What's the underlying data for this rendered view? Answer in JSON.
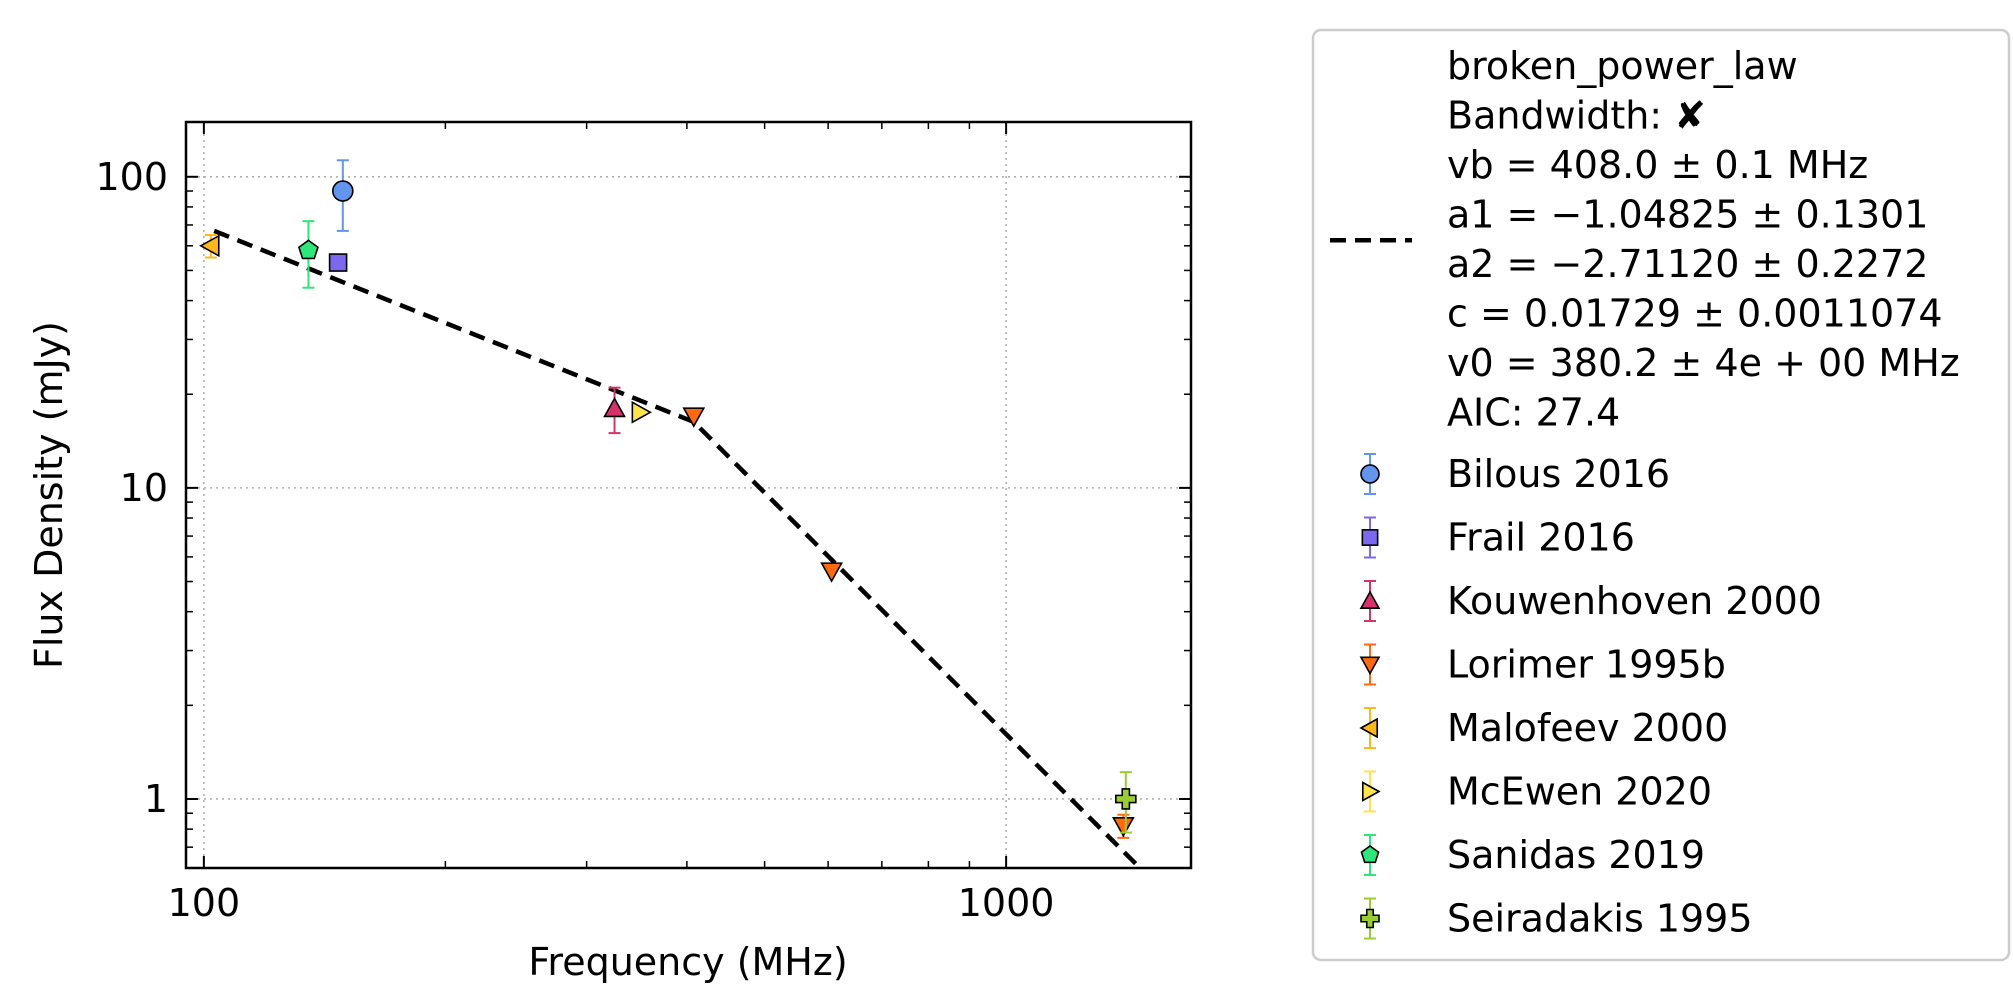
{
  "chart_data": {
    "type": "scatter",
    "title": "",
    "xlabel": "Frequency (MHz)",
    "ylabel": "Flux Density (mJy)",
    "xscale": "log",
    "yscale": "log",
    "xlim": [
      95,
      1700
    ],
    "ylim": [
      0.6,
      150
    ],
    "x_ticks": [
      {
        "value": 100,
        "label": "100"
      },
      {
        "value": 1000,
        "label": "1000"
      }
    ],
    "y_ticks": [
      {
        "value": 1,
        "label": "1"
      },
      {
        "value": 10,
        "label": "10"
      },
      {
        "value": 100,
        "label": "100"
      }
    ],
    "grid": true,
    "legend_position": "outside-right",
    "fit": {
      "model_label": "broken_power_law",
      "lines": [
        "broken_power_law",
        "Bandwidth: ✘",
        "vb = 408.0 ± 0.1 MHz",
        "a1 = −1.04825 ± 0.1301",
        "a2 = −2.71120 ± 0.2272",
        "c = 0.01729 ± 0.0011074",
        "v0 = 380.2 ± 4e + 00 MHz",
        "AIC: 27.4"
      ],
      "color": "#000000",
      "x": [
        103,
        408,
        1450
      ],
      "y": [
        67,
        16.3,
        0.62
      ]
    },
    "series": [
      {
        "name": "Bilous 2016",
        "marker": "circle",
        "color": "#6495ED",
        "points": [
          {
            "x": 149,
            "y": 90,
            "err_low": 23,
            "err_high": 23
          }
        ]
      },
      {
        "name": "Frail 2016",
        "marker": "square",
        "color": "#7B68EE",
        "points": [
          {
            "x": 147,
            "y": 53,
            "err_low": 0,
            "err_high": 0
          }
        ]
      },
      {
        "name": "Kouwenhoven 2000",
        "marker": "triangle-up",
        "color": "#D6336C",
        "points": [
          {
            "x": 325,
            "y": 18,
            "err_low": 3,
            "err_high": 3
          }
        ]
      },
      {
        "name": "Lorimer 1995b",
        "marker": "triangle-down",
        "color": "#FF6A10",
        "points": [
          {
            "x": 408,
            "y": 17,
            "err_low": 0,
            "err_high": 0
          },
          {
            "x": 606,
            "y": 5.4,
            "err_low": 0,
            "err_high": 0
          },
          {
            "x": 1400,
            "y": 0.82,
            "err_low": 0.07,
            "err_high": 0.07
          }
        ]
      },
      {
        "name": "Malofeev 2000",
        "marker": "triangle-left",
        "color": "#FFB81C",
        "points": [
          {
            "x": 102,
            "y": 60,
            "err_low": 5,
            "err_high": 5
          }
        ]
      },
      {
        "name": "McEwen 2020",
        "marker": "triangle-right",
        "color": "#FFE34D",
        "points": [
          {
            "x": 350,
            "y": 17.5,
            "err_low": 0,
            "err_high": 0
          }
        ]
      },
      {
        "name": "Sanidas 2019",
        "marker": "pentagon",
        "color": "#2EE67A",
        "points": [
          {
            "x": 135,
            "y": 58,
            "err_low": 14,
            "err_high": 14
          }
        ]
      },
      {
        "name": "Seiradakis 1995",
        "marker": "plus",
        "color": "#9ACD32",
        "points": [
          {
            "x": 1410,
            "y": 1.0,
            "err_low": 0.22,
            "err_high": 0.22
          }
        ]
      }
    ]
  }
}
